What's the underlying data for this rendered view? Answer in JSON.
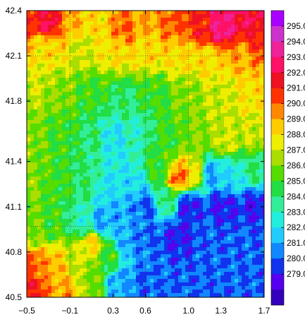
{
  "chart_data": {
    "type": "heatmap",
    "title": "",
    "xlabel": "",
    "ylabel": "",
    "xlim": [
      -0.5,
      1.7
    ],
    "ylim": [
      40.5,
      42.4
    ],
    "x_ticks": [
      "−0.5",
      "−0.1",
      "0.3",
      "0.6",
      "1.0",
      "1.3",
      "1.7"
    ],
    "x_tick_values": [
      -0.5,
      -0.1,
      0.3,
      0.6,
      1.0,
      1.3,
      1.7
    ],
    "y_ticks": [
      "42.4",
      "42.1",
      "41.8",
      "41.4",
      "41.1",
      "40.8",
      "40.5"
    ],
    "y_tick_values": [
      42.4,
      42.1,
      41.8,
      41.4,
      41.1,
      40.8,
      40.5
    ],
    "grid": true,
    "grid_lines_x": [
      -0.1,
      0.6,
      1.0
    ],
    "grid_lines_y": [
      42.1,
      40.97
    ],
    "colorbar": {
      "levels": [
        "295.0",
        "294.0",
        "293.0",
        "292.0",
        "291.0",
        "290.0",
        "289.0",
        "288.0",
        "287.0",
        "286.0",
        "285.0",
        "284.0",
        "283.0",
        "282.0",
        "281.0",
        "280.0",
        "279.0"
      ],
      "level_values": [
        295,
        294,
        293,
        292,
        291,
        290,
        289,
        288,
        287,
        286,
        285,
        284,
        283,
        282,
        281,
        280,
        279
      ],
      "colors": [
        "#cc33cc",
        "#ee2299",
        "#ff1166",
        "#ee1122",
        "#ff3300",
        "#ff8800",
        "#ffcc00",
        "#eeee00",
        "#aadd00",
        "#55dd00",
        "#22dd44",
        "#33ee99",
        "#22eedd",
        "#22ccff",
        "#1188ff",
        "#1133ee",
        "#5500ee"
      ],
      "top_color": "#aa00ff",
      "bottom_color": "#3300bb"
    },
    "field_points": [
      {
        "x": -0.45,
        "y": 42.35,
        "v": 292
      },
      {
        "x": -0.3,
        "y": 42.33,
        "v": 293
      },
      {
        "x": -0.1,
        "y": 42.3,
        "v": 290
      },
      {
        "x": 0.15,
        "y": 42.32,
        "v": 289
      },
      {
        "x": 0.4,
        "y": 42.28,
        "v": 291
      },
      {
        "x": 0.6,
        "y": 42.34,
        "v": 290
      },
      {
        "x": 0.85,
        "y": 42.3,
        "v": 291
      },
      {
        "x": 1.1,
        "y": 42.32,
        "v": 292
      },
      {
        "x": 1.3,
        "y": 42.3,
        "v": 294
      },
      {
        "x": 1.55,
        "y": 42.33,
        "v": 293
      },
      {
        "x": 1.65,
        "y": 42.2,
        "v": 292
      },
      {
        "x": 1.5,
        "y": 42.1,
        "v": 290
      },
      {
        "x": 1.2,
        "y": 42.05,
        "v": 289
      },
      {
        "x": 0.9,
        "y": 42.1,
        "v": 289
      },
      {
        "x": 0.6,
        "y": 42.15,
        "v": 289
      },
      {
        "x": 0.3,
        "y": 42.15,
        "v": 289
      },
      {
        "x": 0.0,
        "y": 42.15,
        "v": 288
      },
      {
        "x": -0.35,
        "y": 42.15,
        "v": 289
      },
      {
        "x": -0.45,
        "y": 41.9,
        "v": 288
      },
      {
        "x": -0.2,
        "y": 41.85,
        "v": 287
      },
      {
        "x": 0.1,
        "y": 41.85,
        "v": 286
      },
      {
        "x": 0.4,
        "y": 41.8,
        "v": 285
      },
      {
        "x": 0.7,
        "y": 41.85,
        "v": 286
      },
      {
        "x": 1.0,
        "y": 41.85,
        "v": 287
      },
      {
        "x": 1.3,
        "y": 41.85,
        "v": 288
      },
      {
        "x": 1.6,
        "y": 41.85,
        "v": 289
      },
      {
        "x": 1.6,
        "y": 41.6,
        "v": 288
      },
      {
        "x": 1.35,
        "y": 41.55,
        "v": 288
      },
      {
        "x": 1.1,
        "y": 41.55,
        "v": 287
      },
      {
        "x": 0.8,
        "y": 41.55,
        "v": 286
      },
      {
        "x": 0.5,
        "y": 41.6,
        "v": 284
      },
      {
        "x": 0.3,
        "y": 41.55,
        "v": 283
      },
      {
        "x": 0.1,
        "y": 41.55,
        "v": 285
      },
      {
        "x": -0.2,
        "y": 41.55,
        "v": 286
      },
      {
        "x": -0.45,
        "y": 41.55,
        "v": 287
      },
      {
        "x": -0.45,
        "y": 41.25,
        "v": 287
      },
      {
        "x": -0.2,
        "y": 41.25,
        "v": 286
      },
      {
        "x": 0.05,
        "y": 41.25,
        "v": 285
      },
      {
        "x": 0.25,
        "y": 41.2,
        "v": 283
      },
      {
        "x": 0.45,
        "y": 41.25,
        "v": 283
      },
      {
        "x": 0.75,
        "y": 41.35,
        "v": 286
      },
      {
        "x": 0.9,
        "y": 41.3,
        "v": 291
      },
      {
        "x": 1.05,
        "y": 41.33,
        "v": 289
      },
      {
        "x": 1.2,
        "y": 41.32,
        "v": 282
      },
      {
        "x": 1.4,
        "y": 41.3,
        "v": 283
      },
      {
        "x": 1.6,
        "y": 41.35,
        "v": 285
      },
      {
        "x": 1.6,
        "y": 41.1,
        "v": 280
      },
      {
        "x": 1.3,
        "y": 41.1,
        "v": 280
      },
      {
        "x": 1.0,
        "y": 41.1,
        "v": 280
      },
      {
        "x": 0.8,
        "y": 41.15,
        "v": 285
      },
      {
        "x": 0.6,
        "y": 41.1,
        "v": 281
      },
      {
        "x": 0.4,
        "y": 41.05,
        "v": 282
      },
      {
        "x": 0.2,
        "y": 41.0,
        "v": 282
      },
      {
        "x": 0.0,
        "y": 41.0,
        "v": 284
      },
      {
        "x": -0.25,
        "y": 41.0,
        "v": 286
      },
      {
        "x": -0.45,
        "y": 40.95,
        "v": 287
      },
      {
        "x": -0.45,
        "y": 40.7,
        "v": 291
      },
      {
        "x": -0.25,
        "y": 40.7,
        "v": 290
      },
      {
        "x": -0.05,
        "y": 40.75,
        "v": 288
      },
      {
        "x": 0.1,
        "y": 40.85,
        "v": 289
      },
      {
        "x": 0.25,
        "y": 40.75,
        "v": 286
      },
      {
        "x": 0.45,
        "y": 40.85,
        "v": 282
      },
      {
        "x": 0.6,
        "y": 40.9,
        "v": 281
      },
      {
        "x": 0.9,
        "y": 40.9,
        "v": 280
      },
      {
        "x": 1.2,
        "y": 40.9,
        "v": 281
      },
      {
        "x": 1.5,
        "y": 40.9,
        "v": 281
      },
      {
        "x": 1.6,
        "y": 40.6,
        "v": 281
      },
      {
        "x": 1.2,
        "y": 40.6,
        "v": 281
      },
      {
        "x": 0.9,
        "y": 40.6,
        "v": 281
      },
      {
        "x": 0.6,
        "y": 40.6,
        "v": 281
      },
      {
        "x": 0.35,
        "y": 40.6,
        "v": 282
      },
      {
        "x": 0.1,
        "y": 40.6,
        "v": 287
      },
      {
        "x": -0.15,
        "y": 40.55,
        "v": 290
      },
      {
        "x": -0.45,
        "y": 40.55,
        "v": 292
      }
    ]
  }
}
